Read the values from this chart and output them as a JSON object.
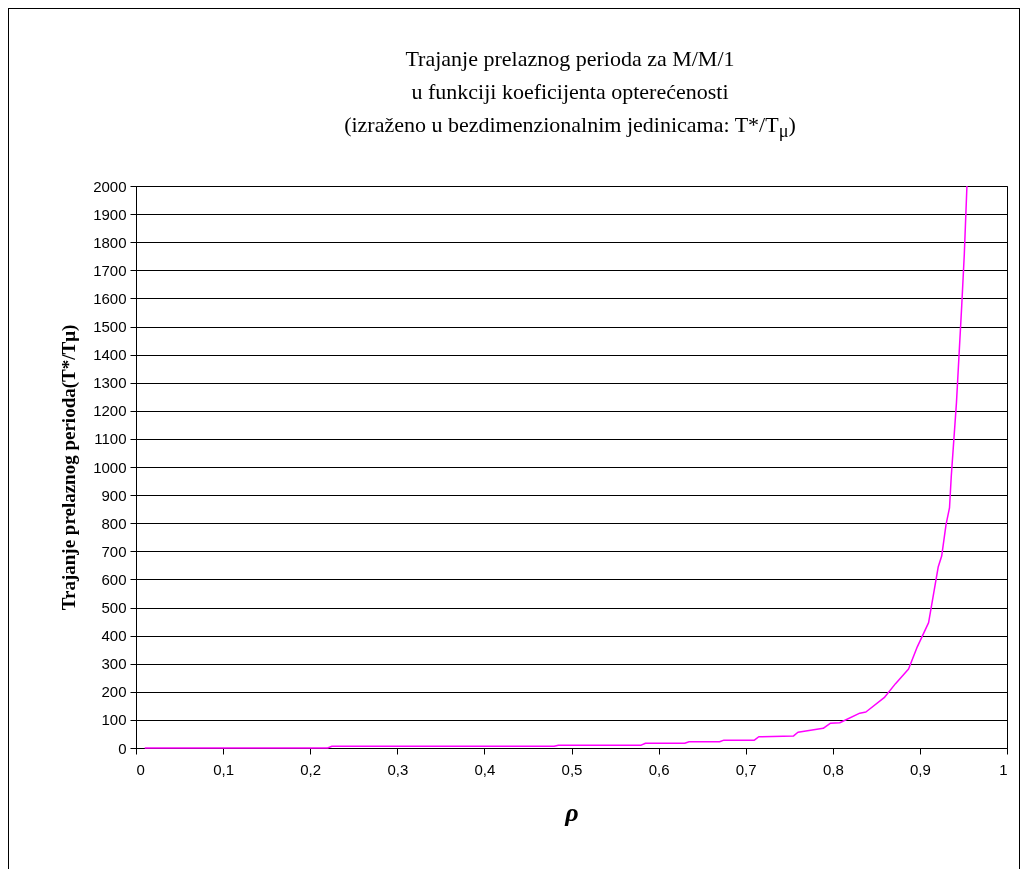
{
  "chart_data": {
    "type": "line",
    "title": "Trajanje prelaznog perioda za M/M/1\nu funkciji koeficijenta opterećenosti\n(izraženo u bezdimenzionalnim jedinicama: T*/T$_{μ}$)",
    "xlabel": "ρ",
    "ylabel": "Trajanje prelaznog perioda(T*/Tμ)",
    "x": [
      0.01,
      0.22,
      0.225,
      0.48,
      0.485,
      0.58,
      0.585,
      0.63,
      0.635,
      0.67,
      0.675,
      0.71,
      0.715,
      0.755,
      0.76,
      0.789,
      0.797,
      0.808,
      0.831,
      0.838,
      0.859,
      0.872,
      0.887,
      0.897,
      0.91,
      0.921,
      0.925,
      0.93,
      0.934,
      0.936,
      0.942,
      0.945,
      0.948,
      0.951,
      0.954
    ],
    "series": [
      {
        "color": "#ff00ff",
        "values": [
          0,
          0,
          6,
          6,
          10,
          10,
          17,
          17,
          22,
          22,
          28,
          28,
          40,
          43,
          56,
          70,
          88,
          90,
          124,
          128,
          179,
          229,
          281,
          360,
          446,
          644,
          683,
          795,
          855,
          966,
          1230,
          1402,
          1573,
          1758,
          2000
        ]
      }
    ],
    "xlim": [
      0,
      1
    ],
    "xticks": [
      0,
      {
        "value": 0.1,
        "label": "0,1"
      },
      {
        "value": 0.2,
        "label": "0,2"
      },
      {
        "value": 0.3,
        "label": "0,3"
      },
      {
        "value": 0.4,
        "label": "0,4"
      },
      {
        "value": 0.5,
        "label": "0,5"
      },
      {
        "value": 0.6,
        "label": "0,6"
      },
      {
        "value": 0.7,
        "label": "0,7"
      },
      {
        "value": 0.8,
        "label": "0,8"
      },
      {
        "value": 0.9,
        "label": "0,9"
      },
      1
    ],
    "ylim": [
      0,
      2000
    ],
    "yticks": [
      0,
      100,
      200,
      300,
      400,
      500,
      600,
      700,
      800,
      900,
      1000,
      1100,
      1200,
      1300,
      1400,
      1500,
      1600,
      1700,
      1800,
      1900,
      2000
    ],
    "grid": "y",
    "marker": "none",
    "line_style": "solid"
  }
}
